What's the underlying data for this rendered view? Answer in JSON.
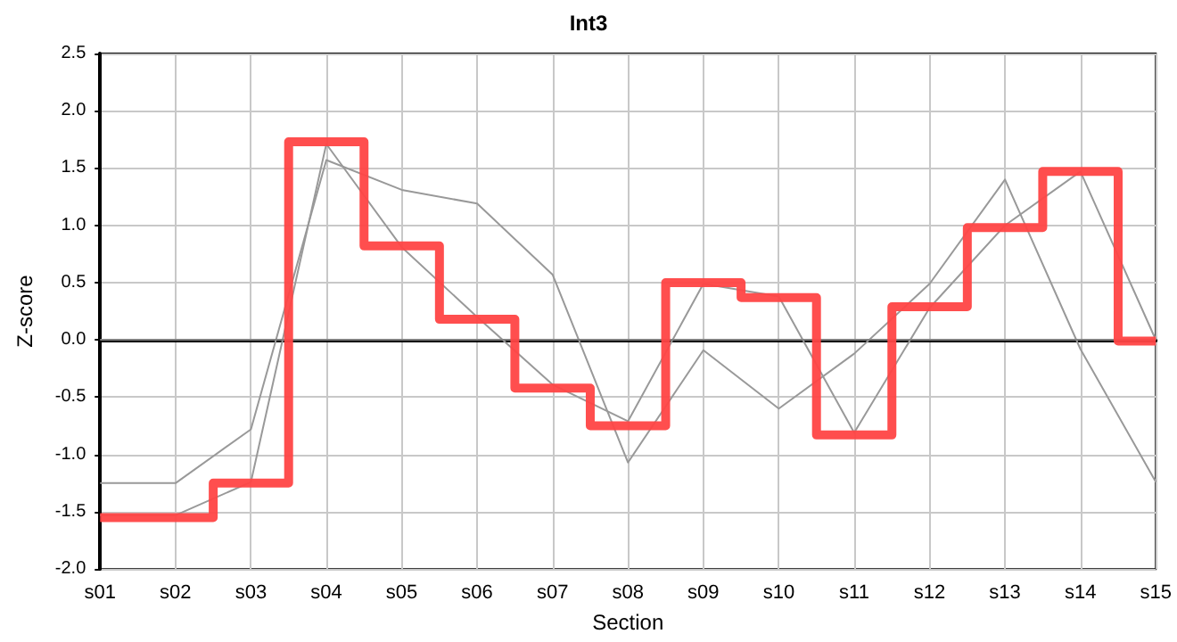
{
  "chart_data": {
    "type": "line",
    "title": "Int3",
    "xlabel": "Section",
    "ylabel": "Z-score",
    "categories": [
      "s01",
      "s02",
      "s03",
      "s04",
      "s05",
      "s06",
      "s07",
      "s08",
      "s09",
      "s10",
      "s11",
      "s12",
      "s13",
      "s14",
      "s15"
    ],
    "series": [
      {
        "color": "#999999",
        "values": [
          -1.25,
          -1.25,
          -0.78,
          1.57,
          1.31,
          1.19,
          0.57,
          -1.07,
          -0.09,
          -0.6,
          -0.12,
          0.49,
          1.4,
          -0.08,
          -1.24
        ]
      },
      {
        "color": "#999999",
        "values": [
          -1.53,
          -1.53,
          -1.24,
          1.71,
          0.81,
          0.2,
          -0.39,
          -0.71,
          0.49,
          0.38,
          -0.81,
          0.28,
          1.0,
          1.47,
          0.0
        ]
      },
      {
        "type": "step",
        "color": "#ff4444",
        "values": [
          -1.55,
          -1.55,
          -1.25,
          1.73,
          0.82,
          0.18,
          -0.42,
          -0.75,
          0.5,
          0.37,
          -0.83,
          0.29,
          0.98,
          1.47,
          -0.01
        ]
      }
    ],
    "ylim": [
      -2,
      2.5
    ],
    "yticks": [
      {
        "value": -2,
        "label": "-2.0"
      },
      {
        "value": -1.5,
        "label": "-1.5"
      },
      {
        "value": -1,
        "label": "-1.0"
      },
      {
        "value": -0.5,
        "label": "-0.5"
      },
      {
        "value": 0,
        "label": "0.0"
      },
      {
        "value": 0.5,
        "label": "0.5"
      },
      {
        "value": 1,
        "label": "1.0"
      },
      {
        "value": 1.5,
        "label": "1.5"
      },
      {
        "value": 2,
        "label": "2.0"
      },
      {
        "value": 2.5,
        "label": "2.5"
      }
    ],
    "ref_lines": [
      {
        "axis": "y",
        "value": 0,
        "color": "#808080"
      }
    ],
    "grid": true,
    "marker": "none",
    "line_style": "solid"
  }
}
